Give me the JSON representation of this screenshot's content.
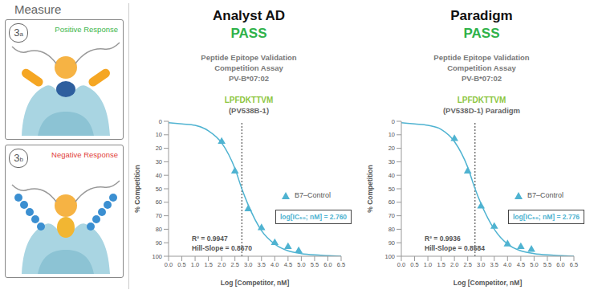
{
  "panel": {
    "title": "Measure",
    "steps": [
      {
        "badge": "3a",
        "label": "Positive Response",
        "color": "#3cb54a"
      },
      {
        "badge": "3b",
        "label": "Negative Response",
        "color": "#e0413a"
      }
    ]
  },
  "chart_data": [
    {
      "type": "line",
      "title": "Analyst AD",
      "status": "PASS",
      "subtitle": [
        "Peptide Epitope Validation",
        "Competition Assay",
        "PV-B*07:02"
      ],
      "peptide": "LPFDKTTVM",
      "peptide_id": "(PV538B-1)",
      "x_label": "Log [Competitor, nM]",
      "y_label": "% Competition",
      "xlim": [
        0,
        6.5
      ],
      "xticks": [
        {
          "value": 0,
          "label": "0.0"
        },
        0.5,
        {
          "value": 1,
          "label": "1.0"
        },
        1.5,
        {
          "value": 2,
          "label": "2.0"
        },
        2.5,
        {
          "value": 3,
          "label": "3.0"
        },
        3.5,
        {
          "value": 4,
          "label": "4.0"
        },
        4.5,
        {
          "value": 5,
          "label": "5.0"
        },
        5.5,
        {
          "value": 6,
          "label": "6.0"
        },
        6.5
      ],
      "ylim": [
        100,
        0
      ],
      "yticks": [
        0,
        10,
        20,
        30,
        40,
        50,
        60,
        70,
        80,
        90,
        100
      ],
      "series": [
        {
          "name": "B7–Control",
          "type": "scatter",
          "marker": "triangle",
          "color": "#4fb3d1",
          "x": [
            2.0,
            2.5,
            3.0,
            3.5,
            4.0,
            4.5,
            4.9
          ],
          "values": [
            15,
            37,
            65,
            79,
            90,
            93,
            96
          ]
        },
        {
          "type": "line",
          "line_style": "solid",
          "color": "#4fb3d1",
          "x": [
            0,
            0.5,
            1.0,
            1.5,
            2.0,
            2.5,
            2.76,
            3.0,
            3.5,
            4.0,
            4.5,
            5.0,
            5.5,
            6.0,
            6.5
          ],
          "values": [
            1,
            2,
            3,
            7,
            16,
            35,
            50,
            62,
            81,
            91,
            96,
            98,
            99,
            99.5,
            100
          ]
        }
      ],
      "ic50": {
        "value": 2.76,
        "label": "2.760",
        "line_style": "dotted"
      },
      "ic50_text": "log[IC₅₀; nM] =",
      "annotations": [
        "R² = 0.9947",
        "Hill-Slope = 0.8670"
      ]
    },
    {
      "type": "line",
      "title": "Paradigm",
      "status": "PASS",
      "subtitle": [
        "Peptide Epitope Validation",
        "Competition Assay",
        "PV-B*07:02"
      ],
      "peptide": "LPFDKTTVM",
      "peptide_id": "(PV538D-1) Paradigm",
      "x_label": "Log [Competitor, nM]",
      "y_label": "% Competition",
      "xlim": [
        0,
        6.5
      ],
      "xticks": [
        {
          "value": 0,
          "label": "0.0"
        },
        0.5,
        {
          "value": 1,
          "label": "1.0"
        },
        1.5,
        {
          "value": 2,
          "label": "2.0"
        },
        2.5,
        {
          "value": 3,
          "label": "3.0"
        },
        3.5,
        {
          "value": 4,
          "label": "4.0"
        },
        4.5,
        {
          "value": 5,
          "label": "5.0"
        },
        5.5,
        {
          "value": 6,
          "label": "6.0"
        },
        6.5
      ],
      "ylim": [
        100,
        0
      ],
      "yticks": [
        0,
        10,
        20,
        30,
        40,
        50,
        60,
        70,
        80,
        90,
        100
      ],
      "series": [
        {
          "name": "B7–Control",
          "type": "scatter",
          "marker": "triangle",
          "color": "#4fb3d1",
          "x": [
            2.0,
            2.5,
            3.0,
            3.5,
            4.0,
            4.5,
            4.9
          ],
          "values": [
            13,
            37,
            63,
            78,
            91,
            93,
            95
          ]
        },
        {
          "type": "line",
          "line_style": "solid",
          "color": "#4fb3d1",
          "x": [
            0,
            0.5,
            1.0,
            1.5,
            2.0,
            2.5,
            2.776,
            3.0,
            3.5,
            4.0,
            4.5,
            5.0,
            5.5,
            6.0,
            6.5
          ],
          "values": [
            1,
            2,
            3,
            6,
            15,
            34,
            50,
            61,
            80,
            91,
            96,
            98,
            99,
            99.5,
            100
          ]
        }
      ],
      "ic50": {
        "value": 2.776,
        "label": "2.776",
        "line_style": "dotted"
      },
      "ic50_text": "log[IC₅₀; nM] =",
      "annotations": [
        "R² = 0.9936",
        "Hill-Slope = 0.8584"
      ]
    }
  ]
}
